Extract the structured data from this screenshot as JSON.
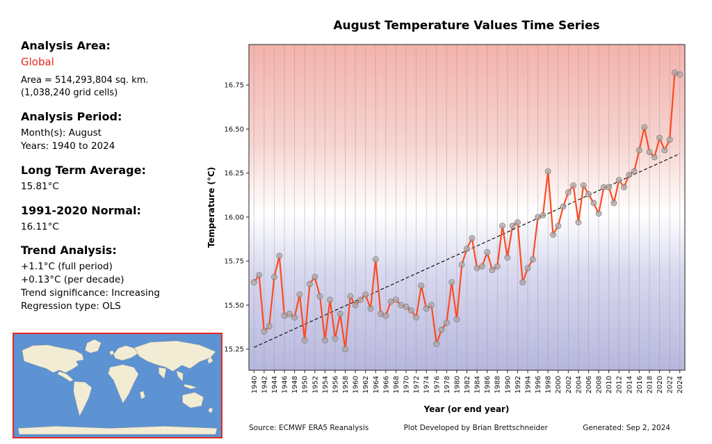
{
  "theme": {
    "accent_red": "#e8291c",
    "ocean_color": "#5d92d3",
    "land_color": "#f1ecd3"
  },
  "left_panel": {
    "analysis_area_label": "Analysis Area:",
    "analysis_area_value": "Global",
    "area_line1": "Area = 514,293,804 sq. km.",
    "area_line2": "(1,038,240 grid cells)",
    "analysis_period_label": "Analysis Period:",
    "period_month": "Month(s): August",
    "period_years": "Years: 1940 to 2024",
    "long_term_avg_label": "Long Term Average:",
    "long_term_avg_value": "15.81°C",
    "normal_label": "1991-2020 Normal:",
    "normal_value": "16.11°C",
    "trend_label": "Trend Analysis:",
    "trend_line1": "+1.1°C (full period)",
    "trend_line2": "+0.13°C (per decade)",
    "trend_line3": "Trend significance: Increasing",
    "trend_line4": "Regression type: OLS"
  },
  "footer": {
    "source": "Source: ECMWF ERA5 Reanalysis",
    "credit": "Plot Developed by Brian Brettschneider",
    "generated": "Generated: Sep 2, 2024"
  },
  "chart_data": {
    "type": "line",
    "title": "August Temperature Values Time Series",
    "xlabel": "Year (or end year)",
    "ylabel": "Temperature (°C)",
    "xlim": [
      1939,
      2025
    ],
    "ylim": [
      15.13,
      16.98
    ],
    "grid": "vertical-only",
    "x_ticks": [
      1940,
      1942,
      1944,
      1946,
      1948,
      1950,
      1952,
      1954,
      1956,
      1958,
      1960,
      1962,
      1964,
      1966,
      1968,
      1970,
      1972,
      1974,
      1976,
      1978,
      1980,
      1982,
      1984,
      1986,
      1988,
      1990,
      1992,
      1994,
      1996,
      1998,
      2000,
      2002,
      2004,
      2006,
      2008,
      2010,
      2012,
      2014,
      2016,
      2018,
      2020,
      2022,
      2024
    ],
    "y_ticks": [
      15.25,
      15.5,
      15.75,
      16.0,
      16.25,
      16.5,
      16.75
    ],
    "years": [
      1940,
      1941,
      1942,
      1943,
      1944,
      1945,
      1946,
      1947,
      1948,
      1949,
      1950,
      1951,
      1952,
      1953,
      1954,
      1955,
      1956,
      1957,
      1958,
      1959,
      1960,
      1961,
      1962,
      1963,
      1964,
      1965,
      1966,
      1967,
      1968,
      1969,
      1970,
      1971,
      1972,
      1973,
      1974,
      1975,
      1976,
      1977,
      1978,
      1979,
      1980,
      1981,
      1982,
      1983,
      1984,
      1985,
      1986,
      1987,
      1988,
      1989,
      1990,
      1991,
      1992,
      1993,
      1994,
      1995,
      1996,
      1997,
      1998,
      1999,
      2000,
      2001,
      2002,
      2003,
      2004,
      2005,
      2006,
      2007,
      2008,
      2009,
      2010,
      2011,
      2012,
      2013,
      2014,
      2015,
      2016,
      2017,
      2018,
      2019,
      2020,
      2021,
      2022,
      2023,
      2024
    ],
    "values": [
      15.63,
      15.67,
      15.35,
      15.38,
      15.66,
      15.78,
      15.44,
      15.45,
      15.43,
      15.56,
      15.3,
      15.62,
      15.66,
      15.55,
      15.3,
      15.53,
      15.31,
      15.45,
      15.25,
      15.55,
      15.5,
      15.53,
      15.56,
      15.48,
      15.76,
      15.45,
      15.44,
      15.52,
      15.53,
      15.5,
      15.49,
      15.47,
      15.43,
      15.61,
      15.48,
      15.5,
      15.28,
      15.36,
      15.4,
      15.63,
      15.42,
      15.73,
      15.82,
      15.88,
      15.71,
      15.72,
      15.8,
      15.7,
      15.72,
      15.95,
      15.77,
      15.95,
      15.97,
      15.63,
      15.71,
      15.76,
      16.0,
      16.01,
      16.26,
      15.9,
      15.95,
      16.06,
      16.14,
      16.18,
      15.97,
      16.18,
      16.13,
      16.08,
      16.02,
      16.17,
      16.17,
      16.08,
      16.21,
      16.17,
      16.24,
      16.26,
      16.38,
      16.51,
      16.37,
      16.34,
      16.45,
      16.38,
      16.44,
      16.82,
      16.81
    ],
    "trend": {
      "start_year": 1940,
      "start_value": 15.26,
      "end_year": 2024,
      "end_value": 16.36
    },
    "line_color": "#fe4a20",
    "marker_fill": "rgba(175,175,175,0.75)",
    "marker_edge": "rgba(110,110,110,0.7)",
    "trend_color": "#111111",
    "grid_color": "#9a9a9a",
    "background_gradient": [
      "#f4b2ac",
      "#f7d4d0",
      "#ffffff",
      "#d8d8ef",
      "#b7b7de"
    ],
    "background_gradient_stops": [
      0,
      0.3,
      0.52,
      0.7,
      1
    ]
  }
}
